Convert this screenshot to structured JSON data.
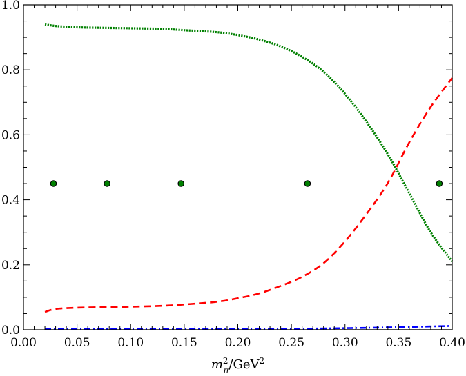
{
  "chart_data": {
    "type": "line",
    "title": "",
    "xlabel": "m_π^2/GeV^2",
    "xlabel_parts": {
      "m": "m",
      "sub": "π",
      "sup": "2",
      "unit": "/GeV",
      "unit_sup": "2"
    },
    "ylabel": "",
    "xlim": [
      0.0,
      0.4
    ],
    "ylim": [
      0.0,
      1.0
    ],
    "xticks": [
      0.0,
      0.05,
      0.1,
      0.15,
      0.2,
      0.25,
      0.3,
      0.35,
      0.4
    ],
    "xtick_labels": [
      "0.00",
      "0.05",
      "0.10",
      "0.15",
      "0.20",
      "0.25",
      "0.30",
      "0.35",
      "0.40"
    ],
    "yticks": [
      0.0,
      0.2,
      0.4,
      0.6,
      0.8,
      1.0
    ],
    "ytick_labels": [
      "0.0",
      "0.2",
      "0.4",
      "0.6",
      "0.8",
      "1.0"
    ],
    "grid": false,
    "legend": "none",
    "series": [
      {
        "style": "dotted",
        "color": "#008000",
        "x": [
          0.02,
          0.03,
          0.05,
          0.08,
          0.1,
          0.13,
          0.15,
          0.18,
          0.2,
          0.22,
          0.24,
          0.26,
          0.28,
          0.3,
          0.32,
          0.34,
          0.36,
          0.38,
          0.4
        ],
        "y": [
          0.94,
          0.935,
          0.931,
          0.929,
          0.928,
          0.926,
          0.922,
          0.916,
          0.907,
          0.893,
          0.872,
          0.84,
          0.794,
          0.726,
          0.64,
          0.54,
          0.42,
          0.3,
          0.21
        ]
      },
      {
        "style": "dashed",
        "color": "#ff0000",
        "x": [
          0.02,
          0.03,
          0.05,
          0.08,
          0.1,
          0.13,
          0.15,
          0.18,
          0.2,
          0.22,
          0.24,
          0.26,
          0.28,
          0.3,
          0.32,
          0.34,
          0.36,
          0.38,
          0.4
        ],
        "y": [
          0.055,
          0.064,
          0.068,
          0.07,
          0.071,
          0.074,
          0.078,
          0.086,
          0.097,
          0.112,
          0.135,
          0.163,
          0.205,
          0.272,
          0.356,
          0.452,
          0.577,
          0.686,
          0.775
        ]
      },
      {
        "style": "dashdot",
        "color": "#0000ff",
        "x": [
          0.02,
          0.1,
          0.2,
          0.25,
          0.3,
          0.35,
          0.4
        ],
        "y": [
          0.003,
          0.002,
          0.002,
          0.003,
          0.005,
          0.008,
          0.012
        ]
      },
      {
        "style": "solid",
        "color": "#000000",
        "x": [
          0.02,
          0.4
        ],
        "y": [
          0.0,
          0.0
        ]
      }
    ],
    "points": {
      "color": "#008000",
      "stroke": "#000000",
      "x": [
        0.028,
        0.078,
        0.147,
        0.265,
        0.388
      ],
      "y": [
        0.45,
        0.45,
        0.45,
        0.45,
        0.45
      ]
    }
  }
}
